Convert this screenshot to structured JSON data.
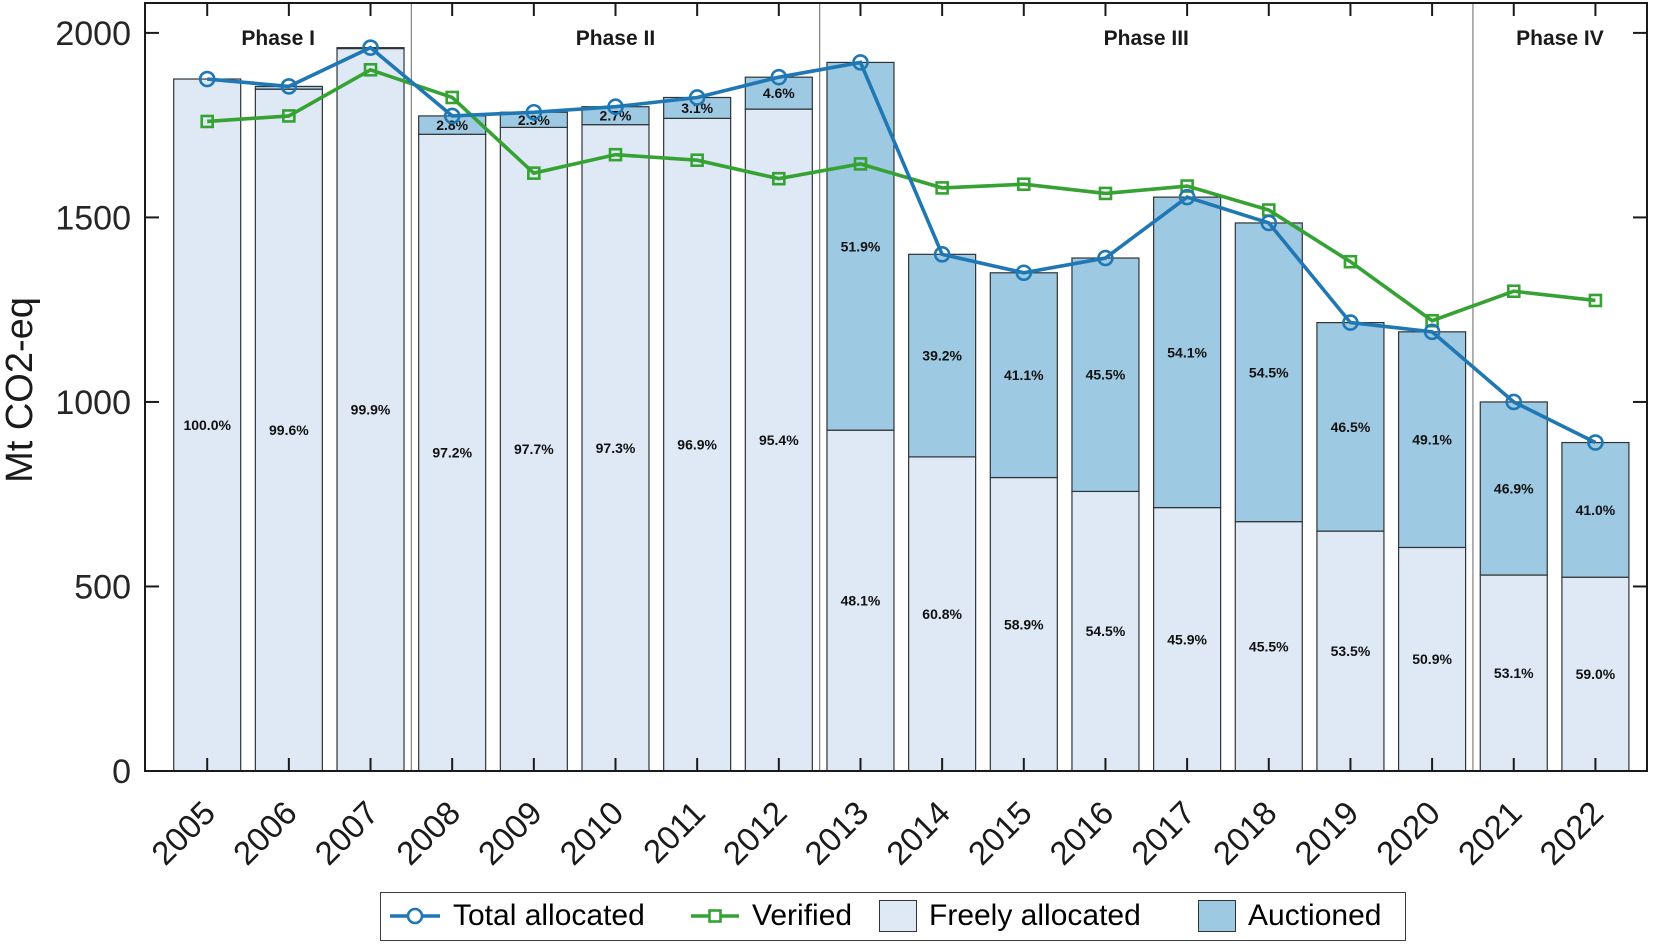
{
  "chart_data": {
    "type": "bar",
    "subtype": "stacked-bars-with-line-overlays",
    "title": "",
    "xlabel": "",
    "ylabel": "Mt CO2-eq",
    "ylim": [
      0,
      2081
    ],
    "yticks": [
      0,
      500,
      1000,
      1500,
      2000
    ],
    "grid": false,
    "legend_position": "bottom-center",
    "categories": [
      "2005",
      "2006",
      "2007",
      "2008",
      "2009",
      "2010",
      "2011",
      "2012",
      "2013",
      "2014",
      "2015",
      "2016",
      "2017",
      "2018",
      "2019",
      "2020",
      "2021",
      "2022"
    ],
    "phases": [
      {
        "label": "Phase I",
        "start": 0,
        "end": 2
      },
      {
        "label": "Phase II",
        "start": 3,
        "end": 7
      },
      {
        "label": "Phase III",
        "start": 8,
        "end": 15
      },
      {
        "label": "Phase IV",
        "start": 16,
        "end": 17
      }
    ],
    "series": [
      {
        "name": "Total allocated",
        "type": "line",
        "marker": "circle",
        "values": [
          1875,
          1855,
          1960,
          1775,
          1785,
          1800,
          1825,
          1880,
          1920,
          1400,
          1350,
          1390,
          1555,
          1485,
          1215,
          1190,
          1000,
          890
        ]
      },
      {
        "name": "Verified",
        "type": "line",
        "marker": "square",
        "values": [
          1760,
          1775,
          1900,
          1825,
          1620,
          1670,
          1655,
          1605,
          1645,
          1580,
          1590,
          1565,
          1585,
          1520,
          1380,
          1220,
          1300,
          1275
        ]
      },
      {
        "name": "Freely allocated",
        "type": "bar-segment",
        "pct": [
          100.0,
          99.6,
          99.9,
          97.2,
          97.7,
          97.3,
          96.9,
          95.4,
          48.1,
          60.8,
          58.9,
          54.5,
          45.9,
          45.5,
          53.5,
          50.9,
          53.1,
          59.0
        ],
        "labels": [
          "100.0%",
          "99.6%",
          "99.9%",
          "97.2%",
          "97.7%",
          "97.3%",
          "96.9%",
          "95.4%",
          "48.1%",
          "60.8%",
          "58.9%",
          "54.5%",
          "45.9%",
          "45.5%",
          "53.5%",
          "50.9%",
          "53.1%",
          "59.0%"
        ]
      },
      {
        "name": "Auctioned",
        "type": "bar-segment",
        "pct": [
          0.0,
          0.4,
          0.1,
          2.8,
          2.3,
          2.7,
          3.1,
          4.6,
          51.9,
          39.2,
          41.1,
          45.5,
          54.1,
          54.5,
          46.5,
          49.1,
          46.9,
          41.0
        ],
        "labels": [
          null,
          null,
          null,
          "2.8%",
          "2.3%",
          "2.7%",
          "3.1%",
          "4.6%",
          "51.9%",
          "39.2%",
          "41.1%",
          "45.5%",
          "54.1%",
          "54.5%",
          "46.5%",
          "49.1%",
          "46.9%",
          "41.0%"
        ]
      }
    ],
    "colors": {
      "freely_allocated": "#dfe9f5",
      "auctioned": "#9ec9e2",
      "total_allocated_line": "#1f77b4",
      "verified_line": "#35a233",
      "bar_edge": "#2e3438",
      "axis": "#1a1a1a",
      "phase_divider": "#7f7f7f",
      "label_text": "#111111"
    }
  }
}
